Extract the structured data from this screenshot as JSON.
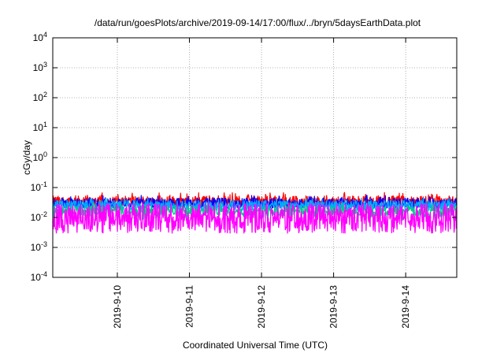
{
  "chart_data": {
    "type": "line",
    "title": "/data/run/goesPlots/archive/2019-09-14/17:00/flux/../bryn/5daysEarthData.plot",
    "xlabel": "Coordinated Universal Time (UTC)",
    "ylabel": "cGy/day",
    "yscale": "log",
    "ylim": [
      0.0001,
      10000
    ],
    "xlim": [
      "2019-09-09T02:30",
      "2019-09-14T17:00"
    ],
    "y_ticks": [
      {
        "base": "10",
        "exp": "-4",
        "value": 0.0001
      },
      {
        "base": "10",
        "exp": "-3",
        "value": 0.001
      },
      {
        "base": "10",
        "exp": "-2",
        "value": 0.01
      },
      {
        "base": "10",
        "exp": "-1",
        "value": 0.1
      },
      {
        "base": "10",
        "exp": "0",
        "value": 1
      },
      {
        "base": "10",
        "exp": "1",
        "value": 10
      },
      {
        "base": "10",
        "exp": "2",
        "value": 100
      },
      {
        "base": "10",
        "exp": "3",
        "value": 1000
      },
      {
        "base": "10",
        "exp": "4",
        "value": 10000
      }
    ],
    "x_ticks": [
      {
        "label": "2019-9-10",
        "value": "2019-09-10T00:00"
      },
      {
        "label": "2019-9-11",
        "value": "2019-09-11T00:00"
      },
      {
        "label": "2019-9-12",
        "value": "2019-09-12T00:00"
      },
      {
        "label": "2019-9-13",
        "value": "2019-09-13T00:00"
      },
      {
        "label": "2019-9-14",
        "value": "2019-09-14T00:00"
      }
    ],
    "grid": true,
    "series": [
      {
        "color": "#ff0000",
        "typical": 0.035,
        "low": 0.022,
        "high": 0.07
      },
      {
        "color": "#0000ff",
        "typical": 0.03,
        "low": 0.02,
        "high": 0.055
      },
      {
        "color": "#00aaff",
        "typical": 0.025,
        "low": 0.017,
        "high": 0.045
      },
      {
        "color": "#00cc88",
        "typical": 0.016,
        "low": 0.008,
        "high": 0.03
      },
      {
        "color": "#ff00ff",
        "typical": 0.007,
        "low": 0.003,
        "high": 0.03
      }
    ]
  }
}
